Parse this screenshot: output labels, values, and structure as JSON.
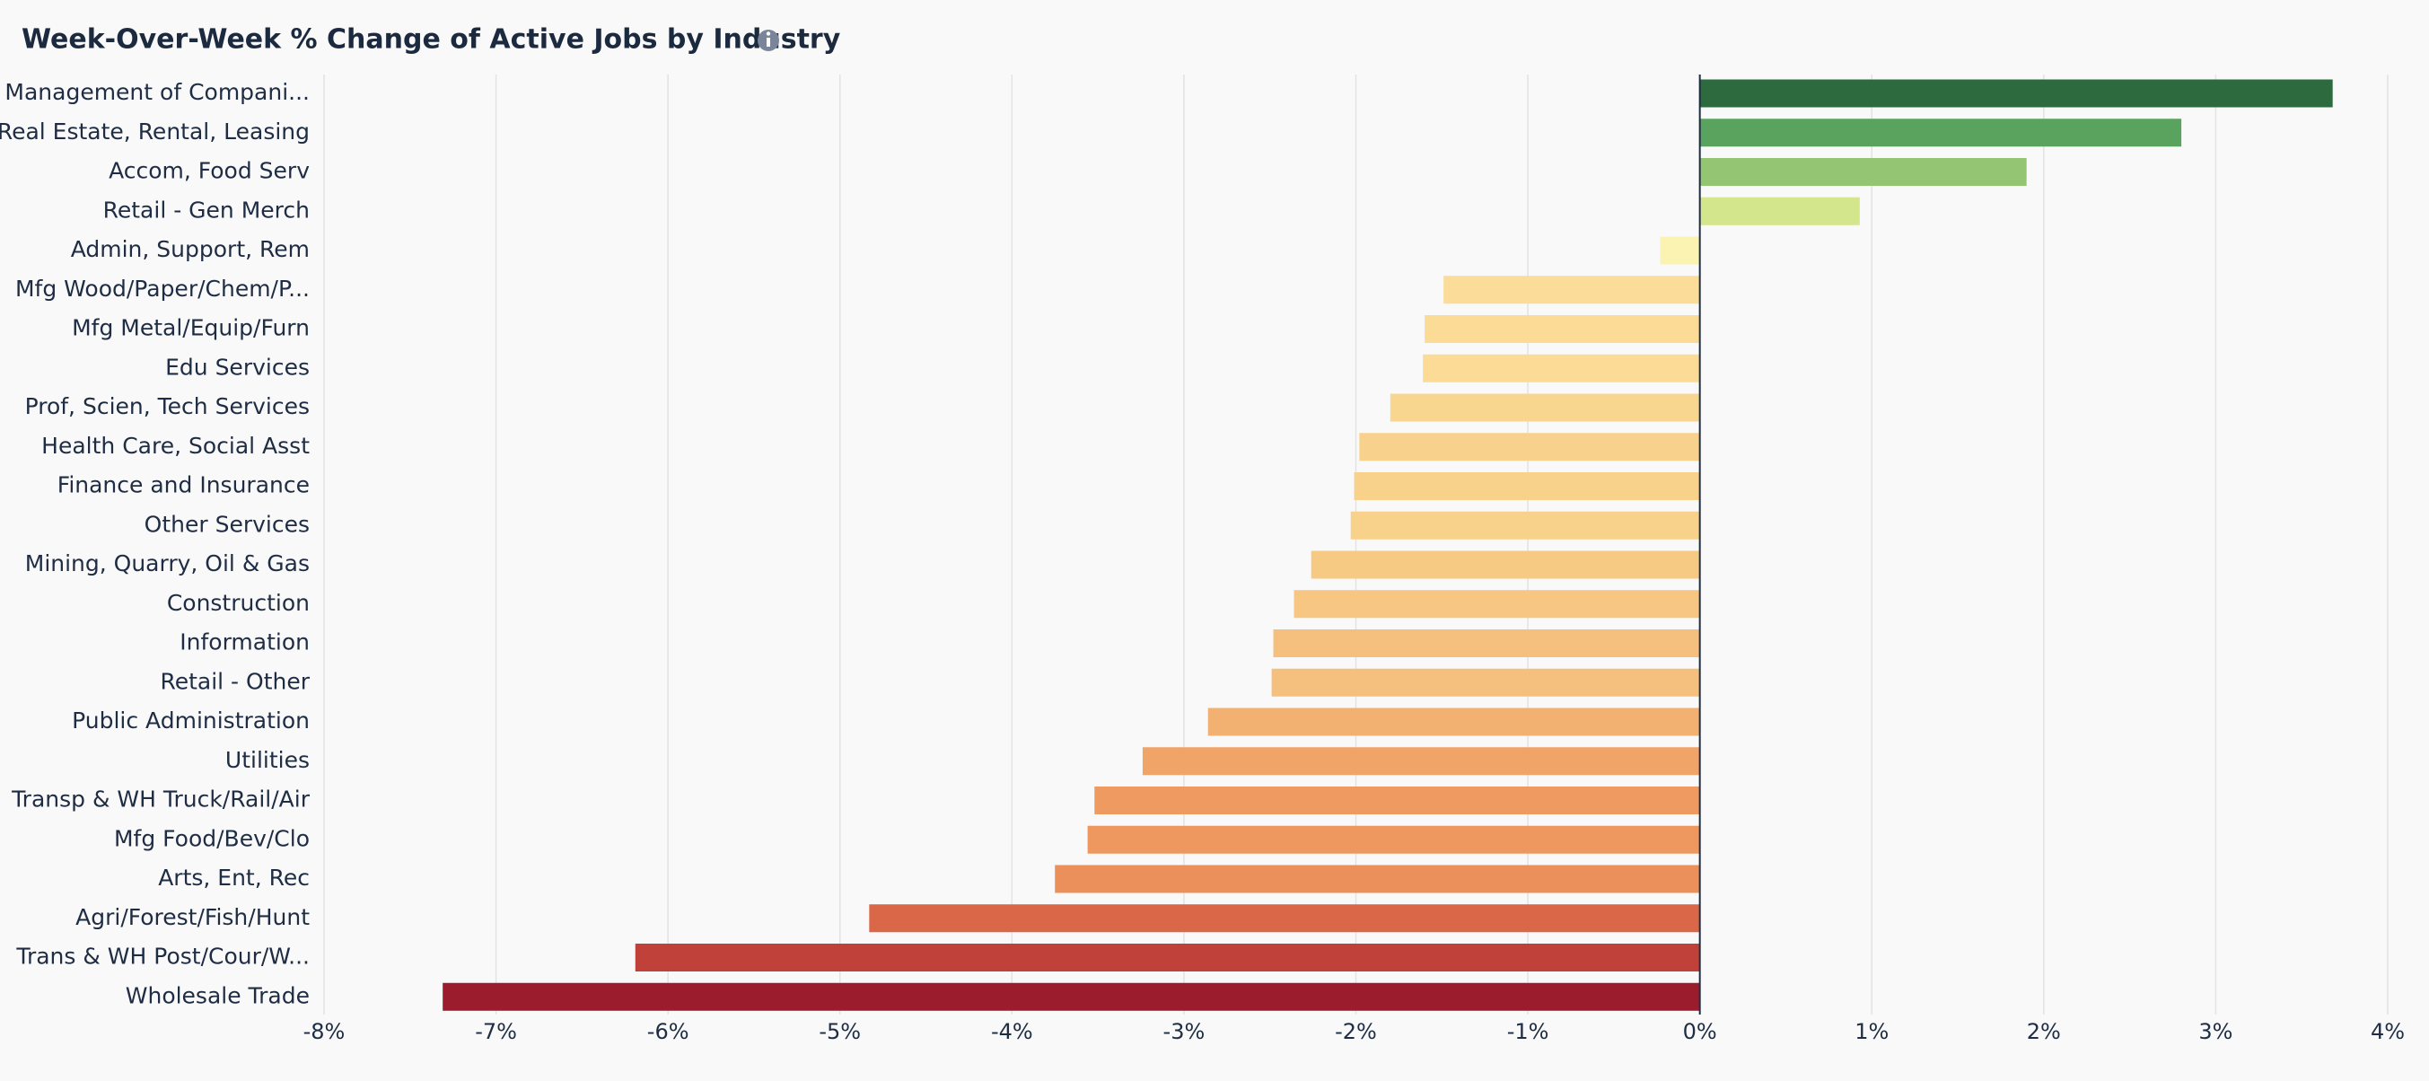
{
  "chart_data": {
    "type": "hbar",
    "title": "Week-Over-Week % Change of Active Jobs by Industry",
    "categories": [
      "Management of Compani...",
      "Real Estate, Rental, Leasing",
      "Accom, Food Serv",
      "Retail - Gen Merch",
      "Admin, Support, Rem",
      "Mfg Wood/Paper/Chem/P...",
      "Mfg Metal/Equip/Furn",
      "Edu Services",
      "Prof, Scien, Tech Services",
      "Health Care, Social Asst",
      "Finance and Insurance",
      "Other Services",
      "Mining, Quarry, Oil & Gas",
      "Construction",
      "Information",
      "Retail - Other",
      "Public Administration",
      "Utilities",
      "Transp & WH Truck/Rail/Air",
      "Mfg Food/Bev/Clo",
      "Arts, Ent, Rec",
      "Agri/Forest/Fish/Hunt",
      "Trans & WH Post/Cour/W...",
      "Wholesale Trade"
    ],
    "values": [
      3.68,
      2.8,
      1.9,
      0.93,
      -0.23,
      -1.49,
      -1.6,
      -1.61,
      -1.8,
      -1.98,
      -2.01,
      -2.03,
      -2.26,
      -2.36,
      -2.48,
      -2.49,
      -2.86,
      -3.24,
      -3.52,
      -3.56,
      -3.75,
      -4.83,
      -6.19,
      -7.31
    ],
    "colors": [
      "#2d6a3e",
      "#5aa35e",
      "#93c572",
      "#d4e68c",
      "#fbf3b2",
      "#fbdc98",
      "#fbdb96",
      "#fbdb96",
      "#f9d68f",
      "#f8d28c",
      "#f8d28b",
      "#f8d18a",
      "#f7ca84",
      "#f6c682",
      "#f5c07e",
      "#f5c07e",
      "#f3b171",
      "#f1a468",
      "#ee9a61",
      "#ee985f",
      "#eb8f5b",
      "#db6749",
      "#c0403a",
      "#9b1c2c"
    ],
    "xlim": [
      -8,
      4
    ],
    "xticks": [
      {
        "value": -8,
        "label": "-8%"
      },
      {
        "value": -7,
        "label": "-7%"
      },
      {
        "value": -6,
        "label": "-6%"
      },
      {
        "value": -5,
        "label": "-5%"
      },
      {
        "value": -4,
        "label": "-4%"
      },
      {
        "value": -3,
        "label": "-3%"
      },
      {
        "value": -2,
        "label": "-2%"
      },
      {
        "value": -1,
        "label": "-1%"
      },
      {
        "value": 0,
        "label": "0%"
      },
      {
        "value": 1,
        "label": "1%"
      },
      {
        "value": 2,
        "label": "2%"
      },
      {
        "value": 3,
        "label": "3%"
      },
      {
        "value": 4,
        "label": "4%"
      }
    ],
    "grid": true
  }
}
